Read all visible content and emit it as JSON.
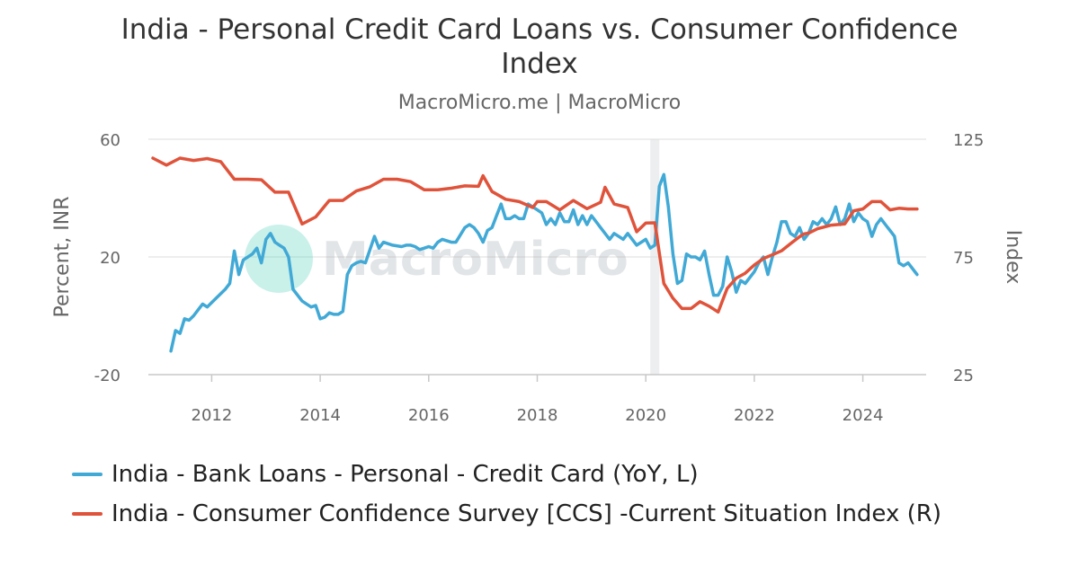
{
  "title": "India - Personal Credit Card Loans vs. Consumer Confidence Index",
  "subtitle": "MacroMicro.me | MacroMicro",
  "watermark": "MacroMicro",
  "colors": {
    "loans": "#41a9d6",
    "ccs": "#e0533b",
    "shade": "#eceeef",
    "grid": "#dddddd"
  },
  "chart_data": {
    "type": "line",
    "x_ticks": [
      "2012",
      "2014",
      "2016",
      "2018",
      "2020",
      "2022",
      "2024"
    ],
    "xlim": [
      "2010-11",
      "2025-03"
    ],
    "y_left": {
      "label": "Percent, INR",
      "ticks": [
        "60",
        "20",
        "-20"
      ],
      "range": [
        -20,
        60
      ]
    },
    "y_right": {
      "label": "Index",
      "ticks": [
        "125",
        "75",
        "25"
      ],
      "range": [
        25,
        125
      ]
    },
    "grid": true,
    "shaded_regions": [
      {
        "start": "2020-02",
        "end": "2020-04"
      }
    ],
    "legend_position": "bottom",
    "series": [
      {
        "name": "India - Bank Loans - Personal - Credit Card (YoY, L)",
        "axis": "left",
        "color": "#41a9d6",
        "points": [
          [
            "2011-04",
            -12
          ],
          [
            "2011-05",
            -5
          ],
          [
            "2011-06",
            -6
          ],
          [
            "2011-07",
            -1
          ],
          [
            "2011-08",
            -1.5
          ],
          [
            "2011-09",
            0
          ],
          [
            "2011-10",
            2
          ],
          [
            "2011-11",
            4
          ],
          [
            "2011-12",
            3
          ],
          [
            "2012-02",
            6
          ],
          [
            "2012-04",
            9
          ],
          [
            "2012-05",
            11
          ],
          [
            "2012-06",
            22
          ],
          [
            "2012-07",
            14
          ],
          [
            "2012-08",
            19
          ],
          [
            "2012-10",
            21
          ],
          [
            "2012-11",
            23
          ],
          [
            "2012-12",
            18
          ],
          [
            "2013-01",
            26
          ],
          [
            "2013-02",
            28
          ],
          [
            "2013-03",
            25
          ],
          [
            "2013-04",
            24
          ],
          [
            "2013-05",
            23
          ],
          [
            "2013-06",
            20
          ],
          [
            "2013-07",
            9
          ],
          [
            "2013-09",
            5
          ],
          [
            "2013-10",
            4
          ],
          [
            "2013-11",
            3
          ],
          [
            "2013-12",
            3.5
          ],
          [
            "2014-01",
            -1
          ],
          [
            "2014-02",
            -0.5
          ],
          [
            "2014-03",
            1
          ],
          [
            "2014-04",
            0.5
          ],
          [
            "2014-05",
            0.5
          ],
          [
            "2014-06",
            1.5
          ],
          [
            "2014-07",
            14
          ],
          [
            "2014-08",
            17
          ],
          [
            "2014-09",
            18
          ],
          [
            "2014-10",
            18.5
          ],
          [
            "2014-11",
            18
          ],
          [
            "2015-01",
            27
          ],
          [
            "2015-02",
            23
          ],
          [
            "2015-03",
            25
          ],
          [
            "2015-05",
            24
          ],
          [
            "2015-07",
            23.5
          ],
          [
            "2015-08",
            24
          ],
          [
            "2015-09",
            24
          ],
          [
            "2015-10",
            23.5
          ],
          [
            "2015-11",
            22.5
          ],
          [
            "2015-12",
            23
          ],
          [
            "2016-01",
            23.5
          ],
          [
            "2016-02",
            23
          ],
          [
            "2016-03",
            25
          ],
          [
            "2016-04",
            26
          ],
          [
            "2016-06",
            25
          ],
          [
            "2016-07",
            25
          ],
          [
            "2016-09",
            30
          ],
          [
            "2016-10",
            31
          ],
          [
            "2016-11",
            30
          ],
          [
            "2016-12",
            28
          ],
          [
            "2017-01",
            25
          ],
          [
            "2017-02",
            29
          ],
          [
            "2017-03",
            30
          ],
          [
            "2017-04",
            34
          ],
          [
            "2017-05",
            38
          ],
          [
            "2017-06",
            33
          ],
          [
            "2017-07",
            33
          ],
          [
            "2017-08",
            34
          ],
          [
            "2017-09",
            33
          ],
          [
            "2017-10",
            33
          ],
          [
            "2017-11",
            38
          ],
          [
            "2017-12",
            37
          ],
          [
            "2018-01",
            36
          ],
          [
            "2018-02",
            35
          ],
          [
            "2018-03",
            31
          ],
          [
            "2018-04",
            33
          ],
          [
            "2018-05",
            31
          ],
          [
            "2018-06",
            35
          ],
          [
            "2018-07",
            32
          ],
          [
            "2018-08",
            32
          ],
          [
            "2018-09",
            36
          ],
          [
            "2018-10",
            31
          ],
          [
            "2018-11",
            34
          ],
          [
            "2018-12",
            31
          ],
          [
            "2019-01",
            34
          ],
          [
            "2019-02",
            32
          ],
          [
            "2019-03",
            30
          ],
          [
            "2019-04",
            28
          ],
          [
            "2019-05",
            26
          ],
          [
            "2019-06",
            28
          ],
          [
            "2019-07",
            27
          ],
          [
            "2019-08",
            26
          ],
          [
            "2019-09",
            28
          ],
          [
            "2019-10",
            26
          ],
          [
            "2019-11",
            24
          ],
          [
            "2019-12",
            25
          ],
          [
            "2020-01",
            26
          ],
          [
            "2020-02",
            23
          ],
          [
            "2020-03",
            24
          ],
          [
            "2020-04",
            44
          ],
          [
            "2020-05",
            48
          ],
          [
            "2020-06",
            37
          ],
          [
            "2020-07",
            21
          ],
          [
            "2020-08",
            11
          ],
          [
            "2020-09",
            12
          ],
          [
            "2020-10",
            21
          ],
          [
            "2020-11",
            20
          ],
          [
            "2020-12",
            20
          ],
          [
            "2021-01",
            19
          ],
          [
            "2021-02",
            22
          ],
          [
            "2021-03",
            14
          ],
          [
            "2021-04",
            7
          ],
          [
            "2021-05",
            7
          ],
          [
            "2021-06",
            10
          ],
          [
            "2021-07",
            20
          ],
          [
            "2021-08",
            15
          ],
          [
            "2021-09",
            8
          ],
          [
            "2021-10",
            12
          ],
          [
            "2021-11",
            11
          ],
          [
            "2022-01",
            15
          ],
          [
            "2022-02",
            18
          ],
          [
            "2022-03",
            20
          ],
          [
            "2022-04",
            14
          ],
          [
            "2022-05",
            20
          ],
          [
            "2022-06",
            25
          ],
          [
            "2022-07",
            32
          ],
          [
            "2022-08",
            32
          ],
          [
            "2022-09",
            28
          ],
          [
            "2022-10",
            27
          ],
          [
            "2022-11",
            30
          ],
          [
            "2022-12",
            26
          ],
          [
            "2023-01",
            28
          ],
          [
            "2023-02",
            32
          ],
          [
            "2023-03",
            31
          ],
          [
            "2023-04",
            33
          ],
          [
            "2023-05",
            31
          ],
          [
            "2023-06",
            33
          ],
          [
            "2023-07",
            37
          ],
          [
            "2023-08",
            31
          ],
          [
            "2023-09",
            33
          ],
          [
            "2023-10",
            38
          ],
          [
            "2023-11",
            32
          ],
          [
            "2023-12",
            35
          ],
          [
            "2024-01",
            33
          ],
          [
            "2024-02",
            32
          ],
          [
            "2024-03",
            27
          ],
          [
            "2024-04",
            31
          ],
          [
            "2024-05",
            33
          ],
          [
            "2024-06",
            31
          ],
          [
            "2024-07",
            29
          ],
          [
            "2024-08",
            27
          ],
          [
            "2024-09",
            18
          ],
          [
            "2024-10",
            17
          ],
          [
            "2024-11",
            18
          ],
          [
            "2024-12",
            16
          ],
          [
            "2025-01",
            14
          ]
        ]
      },
      {
        "name": "India - Consumer Confidence Survey [CCS] -Current Situation Index (R)",
        "axis": "right",
        "color": "#e0533b",
        "points": [
          [
            "2010-12",
            117
          ],
          [
            "2011-03",
            114
          ],
          [
            "2011-06",
            117
          ],
          [
            "2011-09",
            116
          ],
          [
            "2011-12",
            116.8
          ],
          [
            "2012-03",
            115.5
          ],
          [
            "2012-06",
            108
          ],
          [
            "2012-09",
            108
          ],
          [
            "2012-12",
            107.8
          ],
          [
            "2013-03",
            102.5
          ],
          [
            "2013-06",
            102.5
          ],
          [
            "2013-09",
            89
          ],
          [
            "2013-12",
            92
          ],
          [
            "2014-03",
            99
          ],
          [
            "2014-06",
            99
          ],
          [
            "2014-09",
            103
          ],
          [
            "2014-12",
            104.8
          ],
          [
            "2015-03",
            108
          ],
          [
            "2015-06",
            108
          ],
          [
            "2015-09",
            107
          ],
          [
            "2015-12",
            103.5
          ],
          [
            "2016-03",
            103.5
          ],
          [
            "2016-06",
            104.2
          ],
          [
            "2016-09",
            105.2
          ],
          [
            "2016-12",
            105
          ],
          [
            "2017-01",
            109.5
          ],
          [
            "2017-03",
            102.8
          ],
          [
            "2017-06",
            99.5
          ],
          [
            "2017-09",
            98.5
          ],
          [
            "2017-12",
            96
          ],
          [
            "2018-01",
            98.5
          ],
          [
            "2018-03",
            98.5
          ],
          [
            "2018-06",
            95
          ],
          [
            "2018-09",
            99
          ],
          [
            "2018-12",
            95.5
          ],
          [
            "2019-03",
            98.2
          ],
          [
            "2019-04",
            104.6
          ],
          [
            "2019-06",
            97.5
          ],
          [
            "2019-09",
            96
          ],
          [
            "2019-11",
            85.7
          ],
          [
            "2020-01",
            89.4
          ],
          [
            "2020-03",
            89.5
          ],
          [
            "2020-05",
            63.7
          ],
          [
            "2020-07",
            57.5
          ],
          [
            "2020-09",
            53.1
          ],
          [
            "2020-11",
            53.1
          ],
          [
            "2021-01",
            56
          ],
          [
            "2021-03",
            54.1
          ],
          [
            "2021-05",
            51.6
          ],
          [
            "2021-07",
            61.6
          ],
          [
            "2021-09",
            66
          ],
          [
            "2021-11",
            68.1
          ],
          [
            "2022-01",
            71.6
          ],
          [
            "2022-03",
            74.3
          ],
          [
            "2022-05",
            75.9
          ],
          [
            "2022-07",
            77.6
          ],
          [
            "2022-09",
            80.6
          ],
          [
            "2022-11",
            83.6
          ],
          [
            "2022-12",
            84.8
          ],
          [
            "2023-01",
            85.1
          ],
          [
            "2023-03",
            87
          ],
          [
            "2023-06",
            88.5
          ],
          [
            "2023-09",
            89
          ],
          [
            "2023-11",
            94.6
          ],
          [
            "2024-01",
            95.4
          ],
          [
            "2024-03",
            98.5
          ],
          [
            "2024-05",
            98.5
          ],
          [
            "2024-07",
            95
          ],
          [
            "2024-09",
            95.7
          ],
          [
            "2024-11",
            95.4
          ],
          [
            "2025-01",
            95.4
          ]
        ]
      }
    ]
  }
}
